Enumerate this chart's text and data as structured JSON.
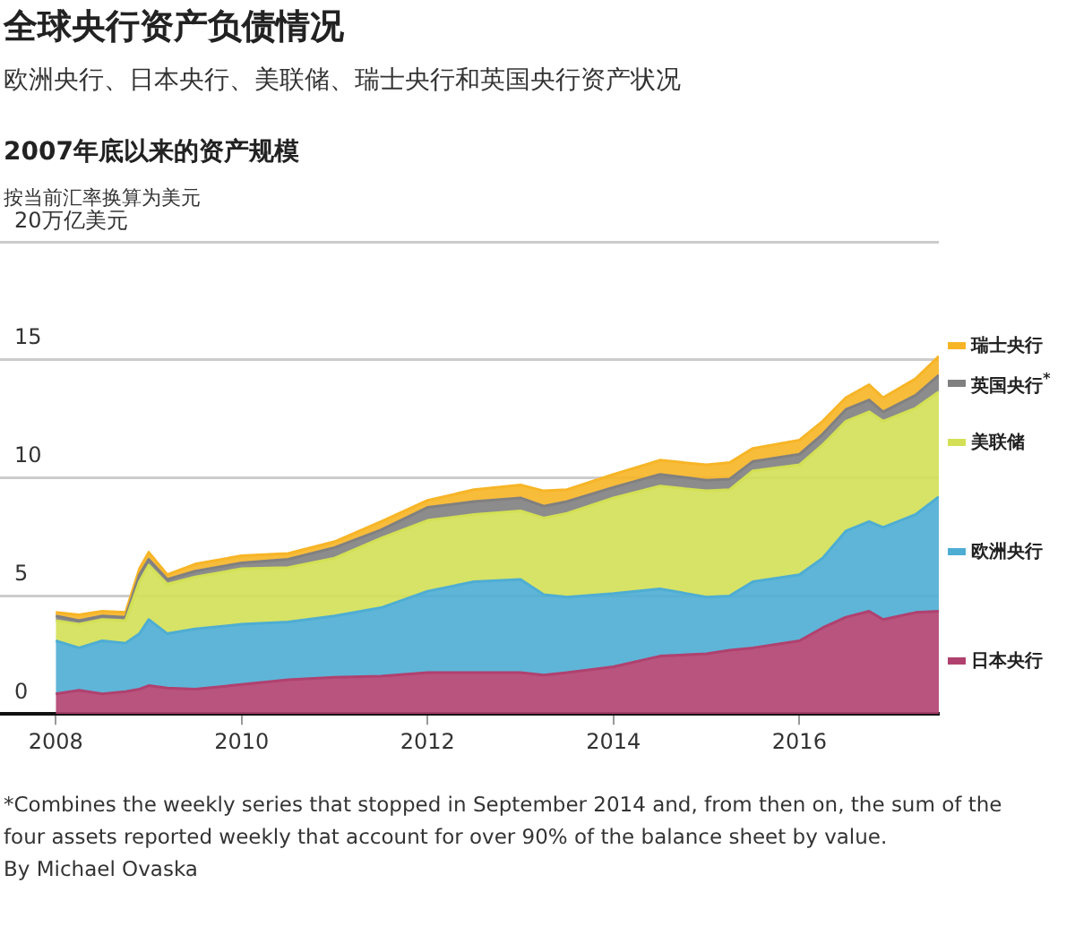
{
  "chart_data": {
    "type": "area",
    "stacked": true,
    "title": "全球央行资产负债情况",
    "subtitle": "欧洲央行、日本央行、美联储、瑞士央行和英国央行资产状况",
    "annotations": [
      "2007年底以来的资产规模",
      "按当前汇率换算为美元",
      "*Combines the weekly series that stopped in September 2014 and, from then on, the sum of the four assets reported weekly that account for over 90% of the balance sheet by value.",
      "By Michael Ovaska"
    ],
    "x": [
      2008,
      2008.25,
      2008.5,
      2008.75,
      2008.9,
      2009,
      2009.2,
      2009.5,
      2010,
      2010.5,
      2011,
      2011.5,
      2012,
      2012.5,
      2013,
      2013.25,
      2013.5,
      2014,
      2014.5,
      2015,
      2015.25,
      2015.5,
      2016,
      2016.25,
      2016.5,
      2016.75,
      2016.9,
      2017.25,
      2017.5
    ],
    "series": [
      {
        "name": "日本央行",
        "color": "#b0416f",
        "values": [
          0.85,
          1.0,
          0.85,
          0.95,
          1.05,
          1.2,
          1.1,
          1.05,
          1.25,
          1.45,
          1.55,
          1.6,
          1.75,
          1.75,
          1.75,
          1.65,
          1.75,
          2.0,
          2.45,
          2.55,
          2.7,
          2.8,
          3.1,
          3.65,
          4.1,
          4.35,
          4.0,
          4.3,
          4.35
        ]
      },
      {
        "name": "欧洲央行",
        "color": "#4eadd3",
        "values": [
          2.25,
          1.8,
          2.25,
          2.05,
          2.35,
          2.8,
          2.3,
          2.55,
          2.55,
          2.45,
          2.6,
          2.9,
          3.45,
          3.85,
          3.95,
          3.4,
          3.2,
          3.1,
          2.85,
          2.4,
          2.3,
          2.8,
          2.8,
          2.95,
          3.65,
          3.8,
          3.9,
          4.15,
          4.85
        ]
      },
      {
        "name": "美联储",
        "color": "#d3e055",
        "values": [
          0.85,
          1.0,
          0.9,
          0.95,
          2.2,
          2.3,
          2.1,
          2.2,
          2.35,
          2.3,
          2.45,
          2.95,
          3.0,
          2.85,
          2.9,
          3.25,
          3.55,
          4.05,
          4.35,
          4.5,
          4.5,
          4.7,
          4.65,
          4.8,
          4.65,
          4.65,
          4.5,
          4.5,
          4.45
        ]
      },
      {
        "name": "英国央行$^{*}$",
        "color": "#808080",
        "values": [
          0.2,
          0.15,
          0.15,
          0.15,
          0.3,
          0.25,
          0.2,
          0.25,
          0.25,
          0.35,
          0.45,
          0.35,
          0.55,
          0.55,
          0.55,
          0.5,
          0.5,
          0.45,
          0.5,
          0.45,
          0.45,
          0.4,
          0.45,
          0.45,
          0.5,
          0.5,
          0.4,
          0.55,
          0.7
        ]
      },
      {
        "name": "瑞士央行",
        "color": "#f7b526",
        "values": [
          0.15,
          0.25,
          0.2,
          0.2,
          0.25,
          0.3,
          0.2,
          0.3,
          0.3,
          0.25,
          0.25,
          0.35,
          0.3,
          0.5,
          0.55,
          0.65,
          0.5,
          0.55,
          0.6,
          0.65,
          0.7,
          0.55,
          0.6,
          0.55,
          0.5,
          0.65,
          0.6,
          0.7,
          0.8
        ]
      }
    ],
    "xlim": [
      2007.4,
      2017.5
    ],
    "xticks": [
      2008,
      2010,
      2012,
      2014,
      2016
    ],
    "ylim": [
      0,
      20
    ],
    "yticks": [
      0,
      5,
      10,
      15,
      {
        "value": 20,
        "label": "20万亿美元"
      }
    ],
    "grid": "y",
    "legend": "right"
  }
}
